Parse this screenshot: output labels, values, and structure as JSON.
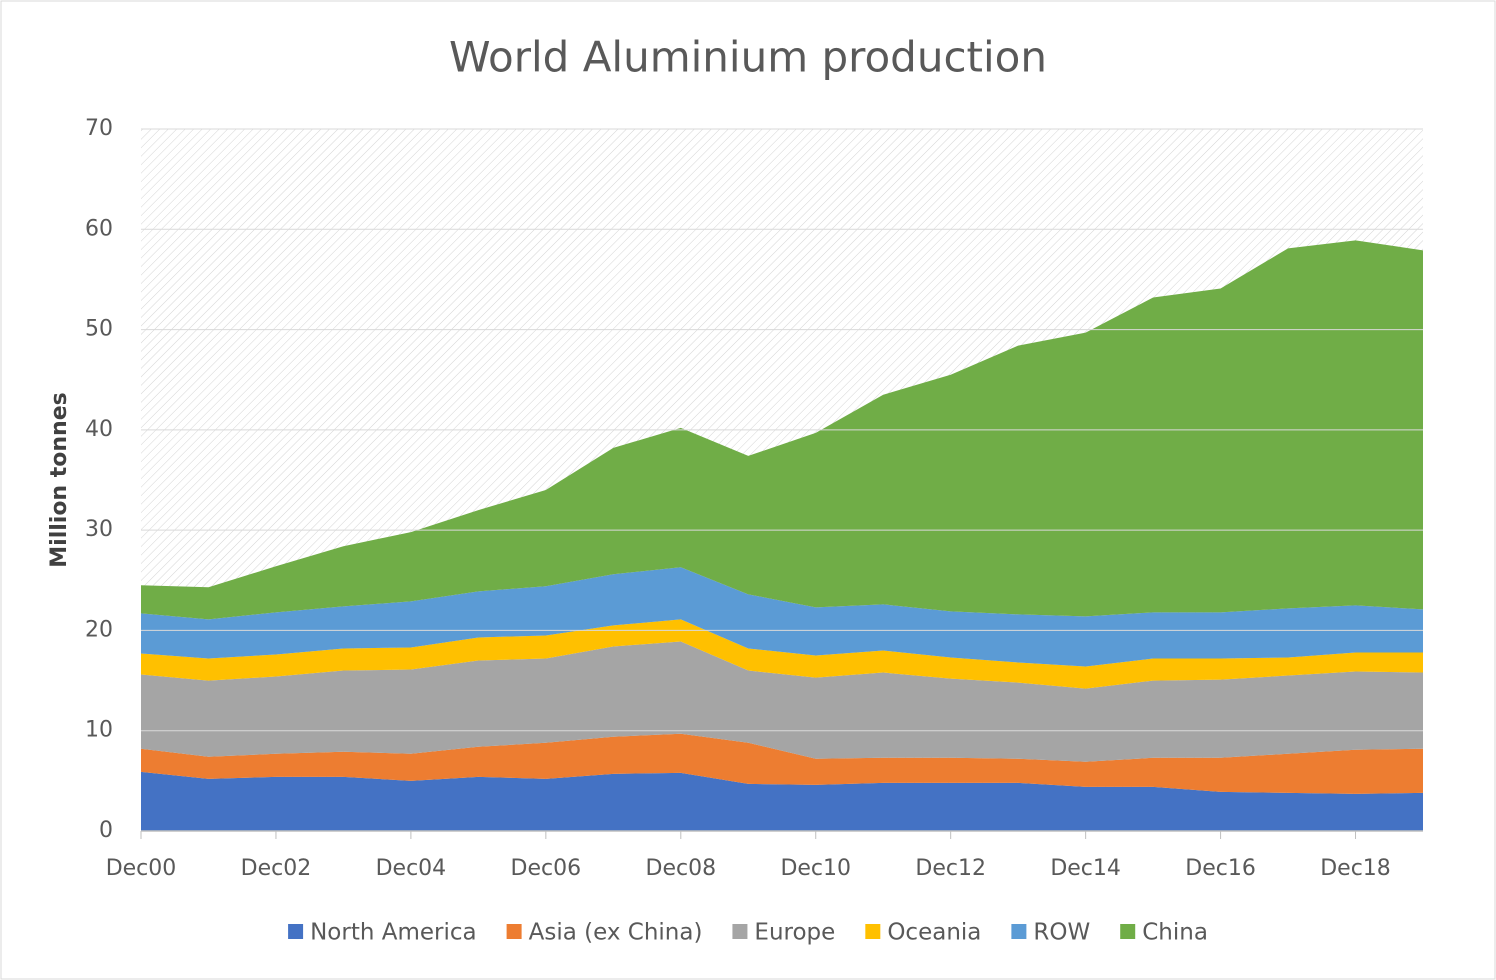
{
  "chart_data": {
    "type": "stacked_area",
    "title": "World Aluminium production",
    "y_label": "Million tonnes",
    "categories": [
      "Dec00",
      null,
      "Dec02",
      null,
      "Dec04",
      null,
      "Dec06",
      null,
      "Dec08",
      null,
      "Dec10",
      null,
      "Dec12",
      null,
      "Dec14",
      null,
      "Dec16",
      null,
      "Dec18",
      null
    ],
    "series": [
      {
        "name": "North America",
        "color": "#4472c4",
        "values": [
          5.9,
          5.2,
          5.4,
          5.4,
          5.0,
          5.4,
          5.2,
          5.7,
          5.8,
          4.7,
          4.6,
          4.8,
          4.8,
          4.8,
          4.4,
          4.4,
          3.9,
          3.8,
          3.7,
          3.8
        ]
      },
      {
        "name": "Asia (ex China)",
        "color": "#ed7d31",
        "values": [
          2.3,
          2.2,
          2.3,
          2.5,
          2.7,
          3.0,
          3.6,
          3.7,
          3.9,
          4.1,
          2.6,
          2.5,
          2.5,
          2.4,
          2.5,
          2.9,
          3.4,
          3.9,
          4.4,
          4.4
        ]
      },
      {
        "name": "Europe",
        "color": "#a5a5a5",
        "values": [
          7.4,
          7.6,
          7.7,
          8.1,
          8.4,
          8.6,
          8.4,
          9.0,
          9.2,
          7.2,
          8.1,
          8.5,
          7.9,
          7.6,
          7.3,
          7.7,
          7.8,
          7.8,
          7.8,
          7.6
        ]
      },
      {
        "name": "Oceania",
        "color": "#ffc000",
        "values": [
          2.1,
          2.2,
          2.2,
          2.2,
          2.2,
          2.3,
          2.3,
          2.1,
          2.2,
          2.2,
          2.2,
          2.2,
          2.1,
          2.0,
          2.2,
          2.2,
          2.1,
          1.8,
          1.9,
          2.0
        ]
      },
      {
        "name": "ROW",
        "color": "#5b9bd5",
        "values": [
          4.0,
          3.9,
          4.2,
          4.2,
          4.6,
          4.6,
          4.9,
          5.1,
          5.2,
          5.4,
          4.8,
          4.6,
          4.6,
          4.8,
          5.0,
          4.6,
          4.6,
          4.9,
          4.7,
          4.3
        ]
      },
      {
        "name": "China",
        "color": "#70ad47",
        "values": [
          2.8,
          3.2,
          4.6,
          6.0,
          6.9,
          8.1,
          9.6,
          12.6,
          13.9,
          13.8,
          17.4,
          20.9,
          23.6,
          26.8,
          28.3,
          31.4,
          32.3,
          35.9,
          36.4,
          35.8
        ]
      }
    ],
    "ylim": [
      0,
      70
    ],
    "yticks": [
      0,
      10,
      20,
      30,
      40,
      50,
      60,
      70
    ],
    "grid": true,
    "legend_position": "bottom"
  }
}
